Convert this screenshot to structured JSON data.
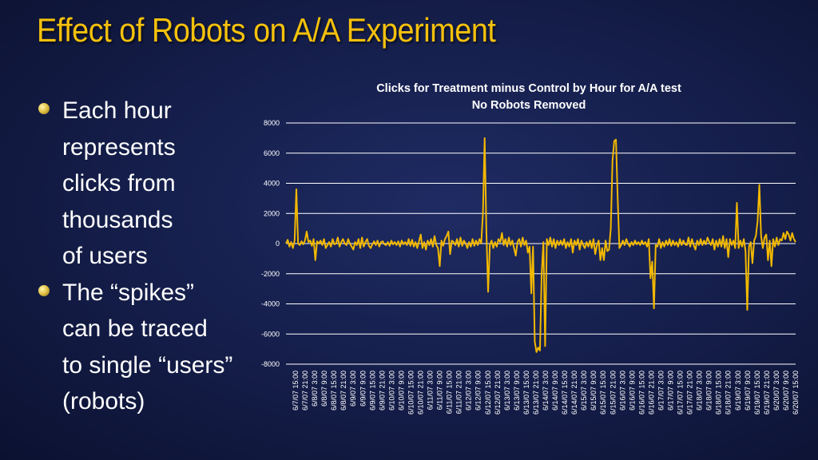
{
  "slide": {
    "title": "Effect of Robots on A/A Experiment",
    "bullets": [
      {
        "lines": [
          "Each hour",
          "represents",
          "clicks from",
          "thousands",
          "of users"
        ]
      },
      {
        "lines": [
          "The “spikes”",
          "can be traced",
          "to single “users”",
          "(robots)"
        ]
      }
    ]
  },
  "chart_data": {
    "type": "line",
    "title": "Clicks for Treatment minus Control by Hour for A/A test",
    "subtitle": "No Robots Removed",
    "ylim": [
      -8000,
      8000
    ],
    "yticks": [
      8000,
      6000,
      4000,
      2000,
      0,
      -2000,
      -4000,
      -6000,
      -8000
    ],
    "grid": true,
    "legend": "none",
    "line_color": "#f2b800",
    "x_tick_labels": [
      "6/7/07 15:00",
      "6/7/07 21:00",
      "6/8/07 3:00",
      "6/8/07 9:00",
      "6/8/07 15:00",
      "6/8/07 21:00",
      "6/9/07 3:00",
      "6/9/07 9:00",
      "6/9/07 15:00",
      "6/9/07 21:00",
      "6/10/07 3:00",
      "6/10/07 9:00",
      "6/10/07 15:00",
      "6/10/07 21:00",
      "6/11/07 3:00",
      "6/11/07 9:00",
      "6/11/07 15:00",
      "6/11/07 21:00",
      "6/12/07 3:00",
      "6/12/07 9:00",
      "6/12/07 15:00",
      "6/12/07 21:00",
      "6/13/07 3:00",
      "6/13/07 9:00",
      "6/13/07 15:00",
      "6/13/07 21:00",
      "6/14/07 3:00",
      "6/14/07 9:00",
      "6/14/07 15:00",
      "6/14/07 21:00",
      "6/15/07 3:00",
      "6/15/07 9:00",
      "6/15/07 15:00",
      "6/15/07 21:00",
      "6/16/07 3:00",
      "6/16/07 9:00",
      "6/16/07 15:00",
      "6/16/07 21:00",
      "6/17/07 3:00",
      "6/17/07 9:00",
      "6/17/07 15:00",
      "6/17/07 21:00",
      "6/18/07 3:00",
      "6/18/07 9:00",
      "6/18/07 15:00",
      "6/18/07 21:00",
      "6/19/07 3:00",
      "6/19/07 9:00",
      "6/19/07 15:00",
      "6/19/07 21:00",
      "6/20/07 3:00",
      "6/20/07 9:00",
      "6/20/07 15:00"
    ],
    "y": [
      0,
      250,
      -200,
      100,
      -300,
      200,
      3600,
      0,
      -100,
      150,
      -50,
      200,
      800,
      100,
      200,
      -150,
      300,
      -1100,
      150,
      0,
      200,
      -100,
      300,
      -300,
      -100,
      100,
      -200,
      300,
      -50,
      0,
      400,
      -200,
      100,
      300,
      0,
      -100,
      300,
      0,
      -200,
      -400,
      100,
      -100,
      300,
      -300,
      400,
      -200,
      100,
      300,
      -150,
      -300,
      -50,
      150,
      -100,
      200,
      -200,
      100,
      150,
      -50,
      -100,
      100,
      -150,
      200,
      -50,
      100,
      -100,
      150,
      -200,
      200,
      -50,
      100,
      -100,
      300,
      -150,
      250,
      -200,
      100,
      -300,
      150,
      600,
      -300,
      100,
      -400,
      200,
      -100,
      300,
      -200,
      500,
      -100,
      -300,
      -1500,
      200,
      -150,
      300,
      500,
      800,
      -700,
      200,
      100,
      -100,
      300,
      -200,
      400,
      -150,
      200,
      0,
      -300,
      100,
      -200,
      300,
      -150,
      200,
      -100,
      300,
      0,
      2000,
      7000,
      800,
      -3200,
      -100,
      200,
      -300,
      100,
      -200,
      300,
      100,
      700,
      -100,
      300,
      -200,
      400,
      -100,
      200,
      -300,
      -800,
      100,
      300,
      -200,
      400,
      -100,
      200,
      -600,
      -200,
      -3300,
      -200,
      -6500,
      -7200,
      -6900,
      -7100,
      -2000,
      100,
      -6800,
      300,
      -100,
      400,
      -200,
      300,
      -300,
      200,
      -100,
      200,
      -100,
      300,
      -300,
      100,
      -200,
      300,
      -600,
      200,
      -100,
      300,
      -400,
      200,
      -100,
      -300,
      100,
      -200,
      200,
      -300,
      300,
      -700,
      -100,
      200,
      -1100,
      -300,
      -1100,
      200,
      -500,
      -400,
      1000,
      5500,
      6800,
      6900,
      3000,
      -300,
      -100,
      200,
      -100,
      300,
      0,
      -200,
      100,
      -100,
      200,
      -50,
      100,
      -100,
      200,
      -50,
      100,
      -200,
      300,
      -2300,
      -1200,
      -4300,
      -100,
      -200,
      300,
      -300,
      100,
      -200,
      200,
      -100,
      300,
      -150,
      200,
      -100,
      100,
      -200,
      300,
      -100,
      200,
      -50,
      -100,
      400,
      -200,
      300,
      -100,
      -400,
      200,
      -100,
      300,
      -100,
      200,
      -50,
      400,
      100,
      -100,
      300,
      -400,
      200,
      -200,
      300,
      -200,
      500,
      -300,
      300,
      -900,
      300,
      -100,
      200,
      -300,
      2700,
      -300,
      200,
      -200,
      300,
      -500,
      -4400,
      -200,
      100,
      -1300,
      200,
      500,
      1500,
      3900,
      500,
      -300,
      400,
      600,
      -1100,
      200,
      -1500,
      300,
      -200,
      400,
      -100,
      300,
      200,
      700,
      300,
      800,
      600,
      200,
      700,
      300,
      100
    ]
  }
}
